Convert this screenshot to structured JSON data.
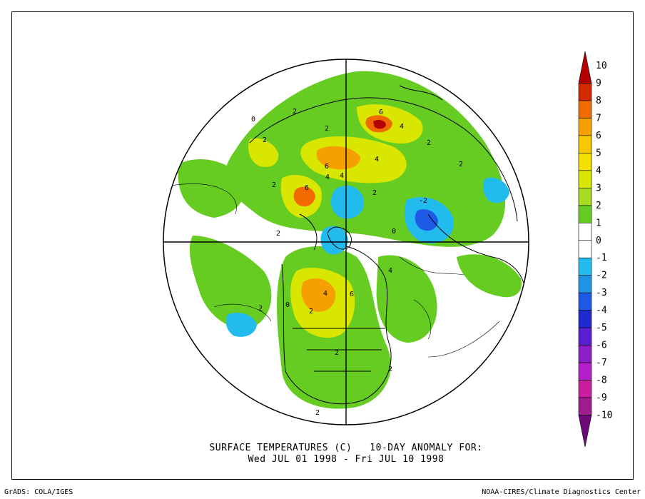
{
  "title": {
    "line1": "SURFACE TEMPERATURES (C)   10-DAY ANOMALY FOR:",
    "line2": "Wed JUL 01 1998 - Fri JUL 10 1998"
  },
  "footer": {
    "left": "GrADS: COLA/IGES",
    "right": "NOAA-CIRES/Climate Diagnostics Center"
  },
  "map_labels": [
    "2",
    "2",
    "2",
    "2",
    "4",
    "6",
    "4",
    "6",
    "6",
    "4",
    "2",
    "4",
    "2",
    "2",
    "2",
    "4",
    "6",
    "4",
    "2",
    "2",
    "2",
    "2",
    "2",
    "0",
    "0",
    "0",
    "-2"
  ],
  "colorbar": {
    "levels": [
      {
        "label": "10",
        "color": "#b30000"
      },
      {
        "label": "9",
        "color": "#d42a00"
      },
      {
        "label": "8",
        "color": "#f06a00"
      },
      {
        "label": "7",
        "color": "#f5a000"
      },
      {
        "label": "6",
        "color": "#f8c800"
      },
      {
        "label": "5",
        "color": "#f5e100"
      },
      {
        "label": "4",
        "color": "#d9e600"
      },
      {
        "label": "3",
        "color": "#a8dc1e"
      },
      {
        "label": "2",
        "color": "#66cc22"
      },
      {
        "label": "1",
        "color": "#ffffff"
      },
      {
        "label": "0",
        "color": "#ffffff"
      },
      {
        "label": "-1",
        "color": "#22bbee"
      },
      {
        "label": "-2",
        "color": "#1e96e6"
      },
      {
        "label": "-3",
        "color": "#1e5ae6"
      },
      {
        "label": "-4",
        "color": "#1e2ad2"
      },
      {
        "label": "-5",
        "color": "#5a1ed2"
      },
      {
        "label": "-6",
        "color": "#8c1ec8"
      },
      {
        "label": "-7",
        "color": "#b41ec8"
      },
      {
        "label": "-8",
        "color": "#c81ea0"
      },
      {
        "label": "-9",
        "color": "#a01e8c"
      },
      {
        "label": "-10",
        "color": "#6e0a78"
      }
    ]
  }
}
